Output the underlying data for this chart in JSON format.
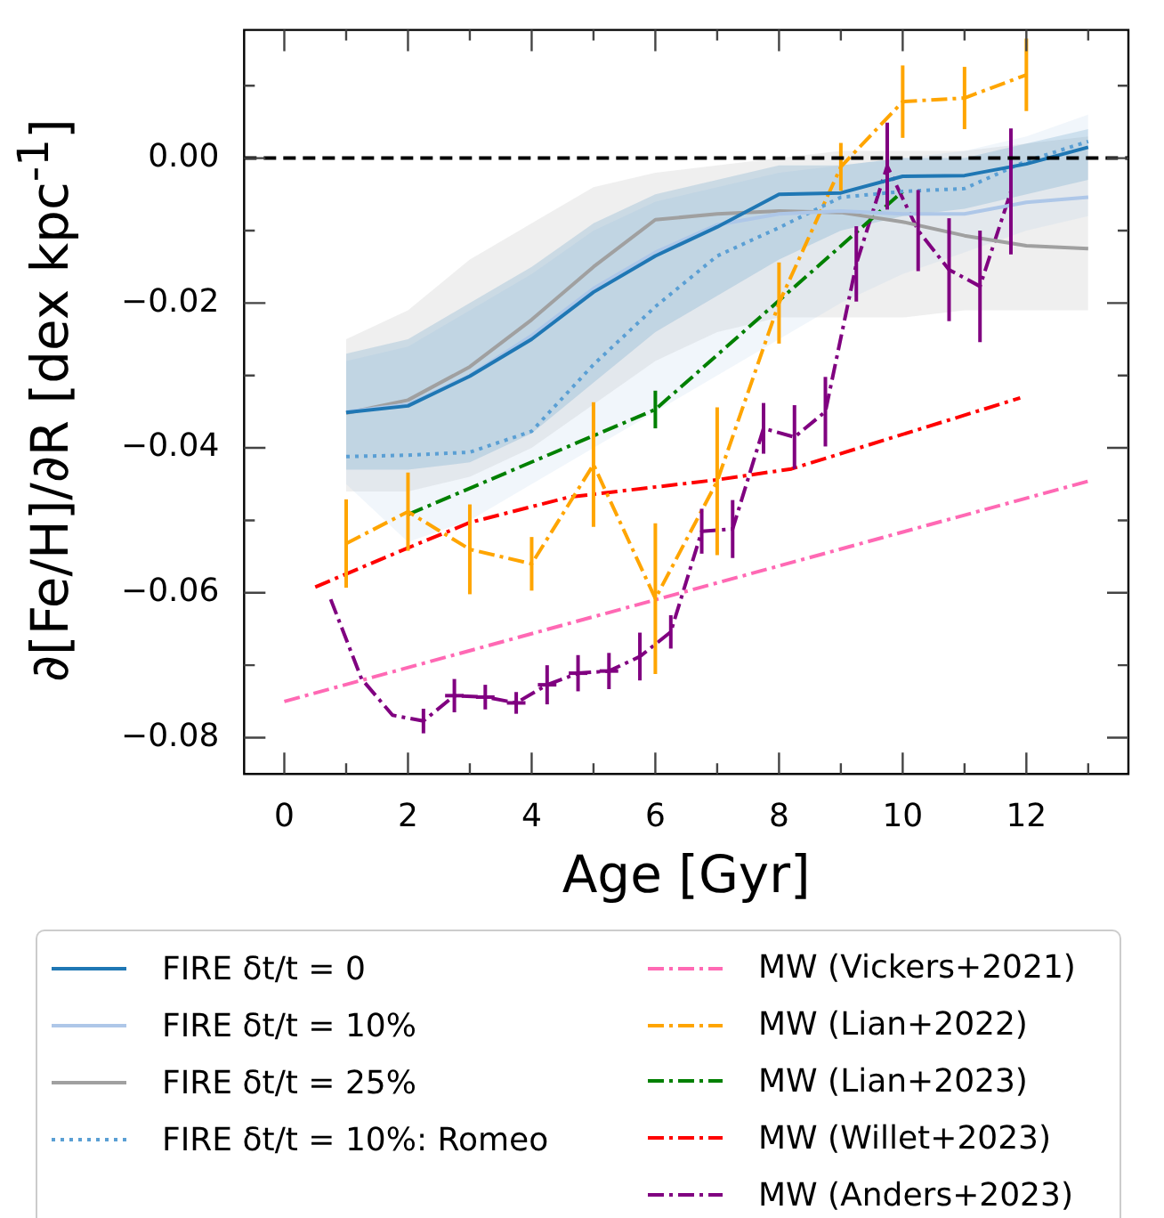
{
  "chart_data": {
    "type": "line",
    "xlabel": "Age [Gyr]",
    "ylabel": "∂[Fe/H]/∂R [dex kpc$^{-1}$]",
    "xlim": [
      -0.65,
      13.65
    ],
    "ylim": [
      -0.085,
      0.0177
    ],
    "xticks": [
      0,
      {
        "value": 1,
        "label": null
      },
      2,
      {
        "value": 3,
        "label": null
      },
      4,
      {
        "value": 5,
        "label": null
      },
      6,
      {
        "value": 7,
        "label": null
      },
      8,
      {
        "value": 9,
        "label": null
      },
      10,
      {
        "value": 11,
        "label": null
      },
      12,
      {
        "value": 13,
        "label": null
      }
    ],
    "yticks": [
      {
        "value": -0.08,
        "label": "−0.08"
      },
      {
        "value": -0.07,
        "label": null
      },
      {
        "value": -0.06,
        "label": "−0.06"
      },
      {
        "value": -0.05,
        "label": null
      },
      {
        "value": -0.04,
        "label": "−0.04"
      },
      {
        "value": -0.03,
        "label": null
      },
      {
        "value": -0.02,
        "label": "−0.02"
      },
      {
        "value": -0.01,
        "label": null
      },
      {
        "value": 0,
        "label": "0.00"
      },
      {
        "value": 0.01,
        "label": null
      }
    ],
    "legend": "bottom",
    "line_style": "solid",
    "ref_lines": [
      {
        "axis": "y",
        "value": 0,
        "color": "#000000",
        "line_style": "dashed"
      }
    ],
    "series": [
      {
        "name": "FIRE δt/t = 0",
        "color": "#1f77b4",
        "x": [
          1,
          2,
          3,
          4,
          5,
          6,
          7,
          8,
          9,
          10,
          11,
          12,
          13
        ],
        "values": [
          -0.0351,
          -0.0342,
          -0.0301,
          -0.025,
          -0.0185,
          -0.0135,
          -0.0095,
          -0.005,
          -0.0048,
          -0.0025,
          -0.0024,
          -0.0008,
          0.0015
        ],
        "lower": [
          -0.043,
          -0.043,
          -0.042,
          -0.038,
          -0.031,
          -0.024,
          -0.019,
          -0.014,
          -0.01,
          -0.008,
          -0.007,
          -0.005,
          -0.003
        ],
        "upper": [
          -0.027,
          -0.025,
          -0.02,
          -0.015,
          -0.009,
          -0.005,
          -0.003,
          -0.001,
          -0.001,
          0,
          0,
          0.002,
          0.004
        ]
      },
      {
        "name": "FIRE δt/t = 10%",
        "color": "#aec7e8",
        "x": [
          1,
          2,
          3,
          4,
          5,
          6,
          7,
          8,
          9,
          10,
          11,
          12,
          13
        ],
        "values": [
          -0.035,
          -0.034,
          -0.03,
          -0.0245,
          -0.018,
          -0.013,
          -0.0092,
          -0.0077,
          -0.0073,
          -0.0077,
          -0.0077,
          -0.0061,
          -0.0054
        ],
        "lower": [
          -0.045,
          -0.053,
          -0.05,
          -0.045,
          -0.04,
          -0.035,
          -0.03,
          -0.025,
          -0.02,
          -0.016,
          -0.013,
          -0.01,
          -0.008
        ],
        "upper": [
          -0.028,
          -0.026,
          -0.021,
          -0.016,
          -0.01,
          -0.006,
          -0.004,
          -0.002,
          -0.001,
          0,
          0.001,
          0.003,
          0.006
        ]
      },
      {
        "name": "FIRE δt/t = 25%",
        "color": "#a0a0a0",
        "x": [
          1,
          2,
          3,
          4,
          5,
          6,
          7,
          8,
          9,
          10,
          11,
          12,
          13
        ],
        "values": [
          -0.0352,
          -0.0334,
          -0.0288,
          -0.0223,
          -0.015,
          -0.0085,
          -0.0077,
          -0.0073,
          -0.0075,
          -0.0088,
          -0.0107,
          -0.0121,
          -0.0125
        ],
        "lower": [
          -0.046,
          -0.046,
          -0.044,
          -0.04,
          -0.034,
          -0.028,
          -0.024,
          -0.022,
          -0.022,
          -0.022,
          -0.021,
          -0.021,
          -0.021
        ],
        "upper": [
          -0.025,
          -0.021,
          -0.014,
          -0.009,
          -0.004,
          -0.002,
          -0.001,
          0,
          0.001,
          0.001,
          0.001,
          0.002,
          0.003
        ]
      },
      {
        "name": "FIRE δt/t = 10%: Romeo",
        "color": "#5a9fd4",
        "line_style": "dotted",
        "x": [
          1,
          2,
          3,
          4,
          5,
          6,
          7,
          8,
          9,
          10,
          11,
          12,
          13
        ],
        "values": [
          -0.0412,
          -0.041,
          -0.0406,
          -0.0377,
          -0.0285,
          -0.0205,
          -0.0135,
          -0.0096,
          -0.0054,
          -0.0046,
          -0.0042,
          -0.0004,
          0.0023
        ]
      },
      {
        "name": "MW (Vickers+2021)",
        "color": "#ff69b4",
        "line_style": "dashdot",
        "x": [
          0,
          13
        ],
        "values": [
          -0.075,
          -0.0446
        ]
      },
      {
        "name": "MW (Lian+2022)",
        "color": "#ffa500",
        "line_style": "dashdot",
        "x": [
          1,
          2,
          3,
          4,
          5,
          6,
          7,
          8,
          9,
          10,
          11,
          12
        ],
        "values": [
          -0.0532,
          -0.0488,
          -0.054,
          -0.056,
          -0.0423,
          -0.0608,
          -0.0446,
          -0.02,
          -0.0012,
          0.0078,
          0.0083,
          0.0115
        ],
        "errors": [
          0.0061,
          0.0054,
          0.0062,
          0.0037,
          0.0086,
          0.0104,
          0.0102,
          0.0056,
          0.0033,
          0.005,
          0.0043,
          0.005
        ]
      },
      {
        "name": "MW (Lian+2023)",
        "color": "#008000",
        "line_style": "dashdot",
        "x": [
          2,
          6,
          10
        ],
        "values": [
          -0.0492,
          -0.0347,
          -0.0046
        ],
        "errors": [
          null,
          0.0026,
          null
        ]
      },
      {
        "name": "MW (Willet+2023)",
        "color": "#ff0000",
        "line_style": "dashdot",
        "x": [
          0.5,
          2,
          3,
          4.6,
          7,
          8.2,
          11.9
        ],
        "values": [
          -0.0592,
          -0.0538,
          -0.0503,
          -0.0468,
          -0.0444,
          -0.0429,
          -0.0331
        ]
      },
      {
        "name": "MW (Anders+2023)",
        "color": "#800080",
        "line_style": "dashdot",
        "x": [
          0.75,
          1.25,
          1.75,
          2.25,
          2.75,
          3.25,
          3.75,
          4.25,
          4.75,
          5.25,
          5.75,
          6.25,
          6.75,
          7.25,
          7.75,
          8.25,
          8.75,
          9.25,
          9.75,
          10.25,
          10.75,
          11.25,
          11.75
        ],
        "values": [
          -0.0609,
          -0.0719,
          -0.0769,
          -0.0777,
          -0.0742,
          -0.0744,
          -0.0752,
          -0.0727,
          -0.0711,
          -0.0708,
          -0.0688,
          -0.0654,
          -0.0515,
          -0.0512,
          -0.0373,
          -0.0385,
          -0.035,
          -0.0146,
          -0.0011,
          -0.01,
          -0.0154,
          -0.0177,
          -0.0046
        ],
        "errors": [
          null,
          null,
          null,
          0.0017,
          0.0023,
          0.0017,
          0.0015,
          0.0027,
          0.0025,
          0.0025,
          0.0033,
          0.0023,
          0.0031,
          0.004,
          0.0035,
          0.0044,
          0.0048,
          0.0052,
          0.006,
          0.0056,
          0.0071,
          0.0077,
          0.0087
        ],
        "xerrors": [
          null,
          null,
          null,
          null,
          0.15,
          0.15,
          0.15,
          0.15,
          0.15,
          0.15,
          null,
          null,
          null,
          null,
          null,
          null,
          null,
          null,
          null,
          null,
          null,
          null,
          null
        ]
      }
    ]
  }
}
